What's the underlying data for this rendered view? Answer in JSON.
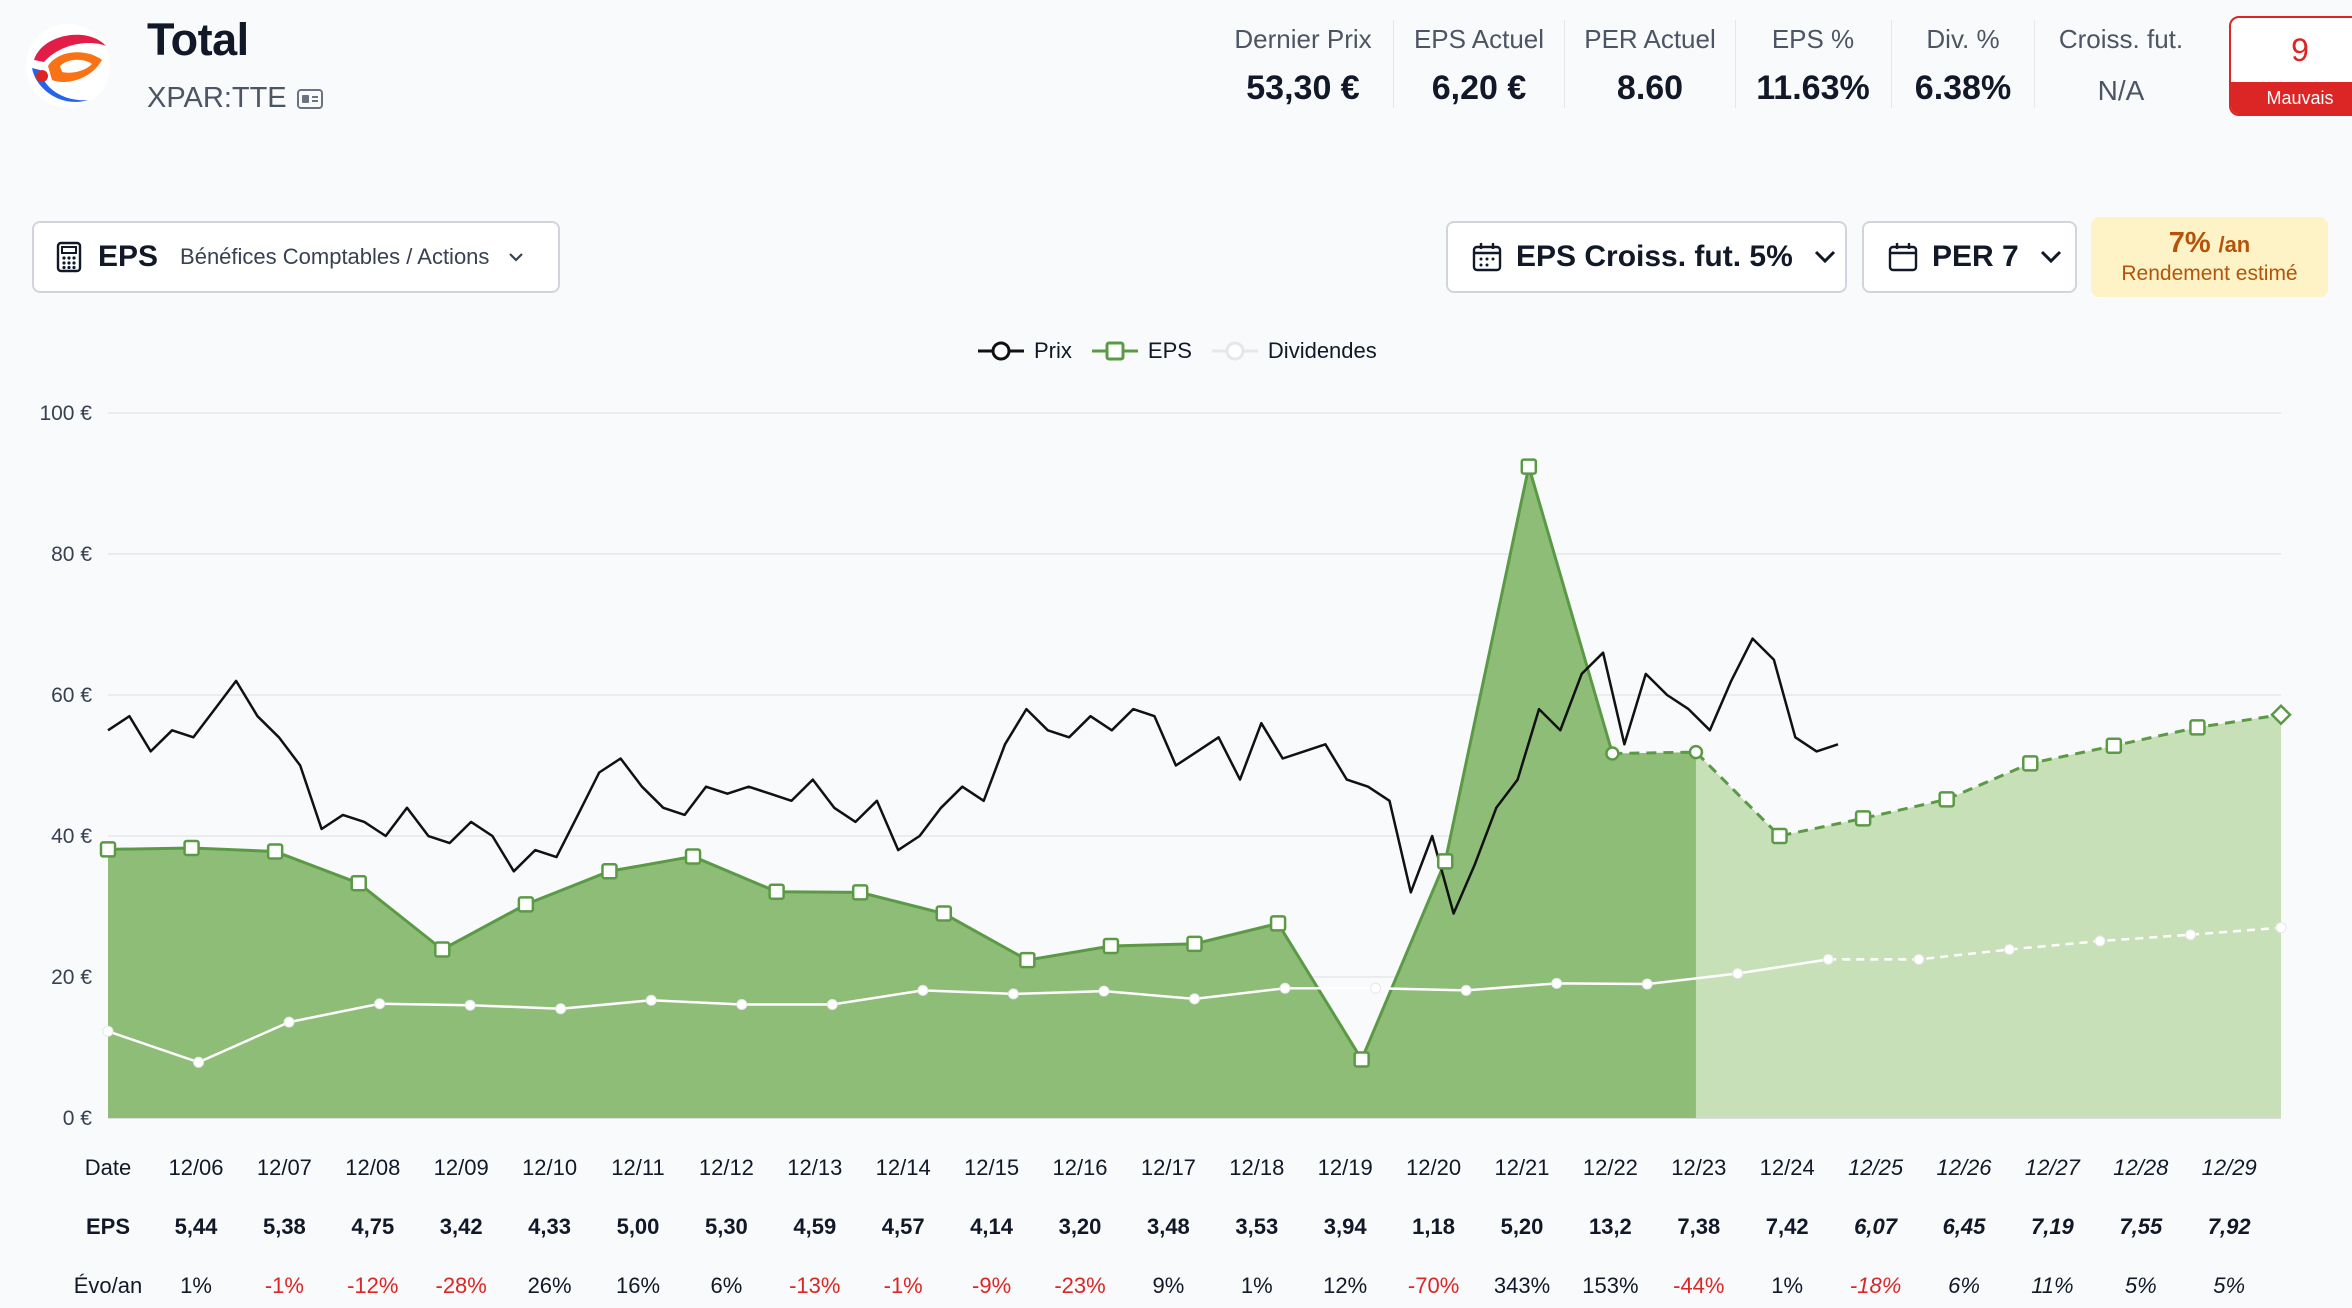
{
  "header": {
    "company": "Total",
    "ticker": "XPAR:TTE",
    "ticker_icon": "id-card-icon",
    "stats": [
      {
        "label": "Dernier Prix",
        "value": "53,30 €"
      },
      {
        "label": "EPS Actuel",
        "value": "6,20 €"
      },
      {
        "label": "PER Actuel",
        "value": "8.60"
      },
      {
        "label": "EPS %",
        "value": "11.63%"
      },
      {
        "label": "Div. %",
        "value": "6.38%"
      },
      {
        "label": "Croiss. fut.",
        "value": "N/A"
      }
    ],
    "score": {
      "value": "9",
      "label": "Mauvais",
      "color": "#dc2626"
    }
  },
  "controls": {
    "metric": {
      "code": "EPS",
      "description": "Bénéfices Comptables / Actions",
      "icon": "calculator-icon"
    },
    "growth": {
      "label": "EPS Croiss. fut. 5%",
      "icon": "calendar-icon"
    },
    "per": {
      "label": "PER 7",
      "icon": "calendar-icon"
    },
    "rendement": {
      "value": "7%",
      "unit": "/an",
      "label": "Rendement estimé"
    }
  },
  "legend": [
    "Prix",
    "EPS",
    "Dividendes"
  ],
  "colors": {
    "eps": "#5b9a45",
    "eps_fill": "#8ebd78",
    "eps_future_fill": "#c7e0b7",
    "price": "#111111",
    "dividend": "#ffffff",
    "negative": "#dc2626"
  },
  "chart_data": {
    "type": "line",
    "y_ticks": [
      "0 €",
      "20 €",
      "40 €",
      "60 €",
      "80 €",
      "100 €"
    ],
    "ylim": [
      0,
      100
    ],
    "x_labels": [
      "12/06",
      "12/07",
      "12/08",
      "12/09",
      "12/10",
      "12/11",
      "12/12",
      "12/13",
      "12/14",
      "12/15",
      "12/16",
      "12/17",
      "12/18",
      "12/19",
      "12/20",
      "12/21",
      "12/22",
      "12/23",
      "12/24",
      "12/25",
      "12/26",
      "12/27",
      "12/28",
      "12/29"
    ],
    "future_from_index": 19,
    "series": [
      {
        "name": "EPS",
        "values": [
          38.1,
          38.3,
          37.8,
          33.3,
          23.9,
          30.3,
          35.0,
          37.1,
          32.1,
          32.0,
          29.0,
          22.4,
          24.4,
          24.7,
          27.6,
          8.3,
          36.4,
          92.4,
          51.7,
          51.9,
          40.0,
          42.5,
          45.2,
          50.3,
          52.8,
          55.4,
          57.2
        ]
      },
      {
        "name": "Prix",
        "values": [
          55,
          57,
          52,
          55,
          54,
          58,
          62,
          57,
          54,
          50,
          41,
          43,
          42,
          40,
          44,
          40,
          39,
          42,
          40,
          35,
          38,
          37,
          43,
          49,
          51,
          47,
          44,
          43,
          47,
          46,
          47,
          46,
          45,
          48,
          44,
          42,
          45,
          38,
          40,
          44,
          47,
          45,
          53,
          58,
          55,
          54,
          57,
          55,
          58,
          57,
          50,
          52,
          54,
          48,
          56,
          51,
          52,
          53,
          48,
          47,
          45,
          32,
          40,
          29,
          36,
          44,
          48,
          58,
          55,
          63,
          66,
          53,
          63,
          60,
          58,
          55,
          62,
          68,
          65,
          54,
          52,
          53
        ]
      },
      {
        "name": "Dividendes",
        "values": [
          12.3,
          7.9,
          13.6,
          16.2,
          16.0,
          15.5,
          16.7,
          16.1,
          16.1,
          18.1,
          17.6,
          18.0,
          16.9,
          18.4,
          18.4,
          18.1,
          19.1,
          19.0,
          20.5,
          22.5,
          22.5,
          23.9,
          25.1,
          26.0,
          27.0
        ]
      }
    ]
  },
  "table": {
    "rows": [
      {
        "label": "Date",
        "values": [
          "12/06",
          "12/07",
          "12/08",
          "12/09",
          "12/10",
          "12/11",
          "12/12",
          "12/13",
          "12/14",
          "12/15",
          "12/16",
          "12/17",
          "12/18",
          "12/19",
          "12/20",
          "12/21",
          "12/22",
          "12/23",
          "12/24",
          "12/25",
          "12/26",
          "12/27",
          "12/28",
          "12/29"
        ]
      },
      {
        "label": "EPS",
        "values": [
          "5,44",
          "5,38",
          "4,75",
          "3,42",
          "4,33",
          "5,00",
          "5,30",
          "4,59",
          "4,57",
          "4,14",
          "3,20",
          "3,48",
          "3,53",
          "3,94",
          "1,18",
          "5,20",
          "13,2",
          "7,38",
          "7,42",
          "6,07",
          "6,45",
          "7,19",
          "7,55",
          "7,92"
        ]
      },
      {
        "label": "Évo/an",
        "values": [
          "1%",
          "-1%",
          "-12%",
          "-28%",
          "26%",
          "16%",
          "6%",
          "-13%",
          "-1%",
          "-9%",
          "-23%",
          "9%",
          "1%",
          "12%",
          "-70%",
          "343%",
          "153%",
          "-44%",
          "1%",
          "-18%",
          "6%",
          "11%",
          "5%",
          "5%"
        ]
      }
    ]
  }
}
